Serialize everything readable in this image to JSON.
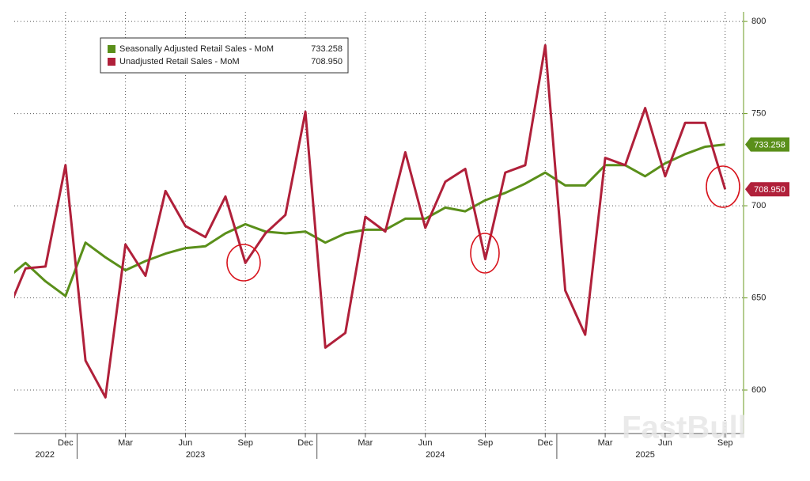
{
  "chart_data": {
    "type": "line",
    "watermark": "FastBull",
    "categories": [
      null,
      null,
      null,
      "Dec",
      null,
      null,
      "Mar",
      null,
      null,
      "Jun",
      null,
      null,
      "Sep",
      null,
      null,
      "Dec",
      null,
      null,
      "Mar",
      null,
      null,
      "Jun",
      null,
      null,
      "Sep",
      null,
      null,
      "Dec",
      null,
      null,
      "Mar",
      null,
      null,
      "Jun",
      null,
      null,
      "Sep"
    ],
    "years": [
      "2022",
      "2023",
      "2024",
      "2025"
    ],
    "series": [
      {
        "name": "Seasonally Adjusted Retail Sales - MoM",
        "color": "#5a8f1a",
        "values": [
          660,
          669,
          659,
          651,
          680,
          672,
          665,
          670,
          674,
          677,
          678,
          685,
          690,
          686,
          685,
          686,
          680,
          685,
          687,
          687,
          693,
          693,
          699,
          697,
          703,
          707,
          712,
          718,
          711,
          711,
          722,
          722,
          716,
          723,
          728,
          732,
          733.258
        ],
        "value_labels": [
          null,
          null,
          null,
          null,
          null,
          null,
          null,
          null,
          null,
          null,
          null,
          null,
          null,
          null,
          null,
          null,
          null,
          null,
          null,
          null,
          null,
          null,
          null,
          null,
          null,
          null,
          null,
          null,
          null,
          null,
          null,
          null,
          null,
          null,
          null,
          null,
          "733.258"
        ]
      },
      {
        "name": "Unadjusted Retail Sales - MoM",
        "color": "#b0203a",
        "values": [
          640,
          666,
          667,
          722,
          616,
          596,
          679,
          662,
          708,
          689,
          683,
          705,
          669,
          685,
          695,
          751,
          623,
          631,
          694,
          686,
          729,
          688,
          713,
          720,
          671,
          718,
          722,
          787,
          654,
          630,
          726,
          722,
          753,
          716,
          745,
          745,
          708.95
        ],
        "value_labels": [
          null,
          null,
          null,
          null,
          null,
          null,
          null,
          null,
          null,
          null,
          null,
          null,
          null,
          null,
          null,
          null,
          null,
          null,
          null,
          null,
          null,
          null,
          null,
          null,
          null,
          null,
          null,
          null,
          null,
          null,
          null,
          null,
          null,
          null,
          null,
          null,
          "708.950"
        ]
      }
    ],
    "ylim": [
      576.4,
      805.2
    ],
    "yticks": [
      600,
      650,
      700,
      750,
      800
    ],
    "grid": true
  }
}
